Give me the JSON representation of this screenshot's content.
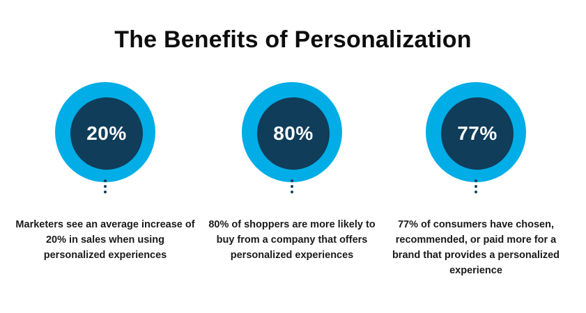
{
  "title": "The Benefits of Personalization",
  "colors": {
    "outer_circle": "#00ade6",
    "inner_circle": "#0f3d5a",
    "text": "#1a1a1a"
  },
  "stats": [
    {
      "value": "20%",
      "description": "Marketers see an average increase of 20% in sales when using personalized experiences"
    },
    {
      "value": "80%",
      "description": "80% of shoppers are more likely to buy from a company that offers personalized experiences"
    },
    {
      "value": "77%",
      "description": "77% of consumers have chosen, recommended, or paid more for a brand that provides a personalized experience"
    }
  ]
}
